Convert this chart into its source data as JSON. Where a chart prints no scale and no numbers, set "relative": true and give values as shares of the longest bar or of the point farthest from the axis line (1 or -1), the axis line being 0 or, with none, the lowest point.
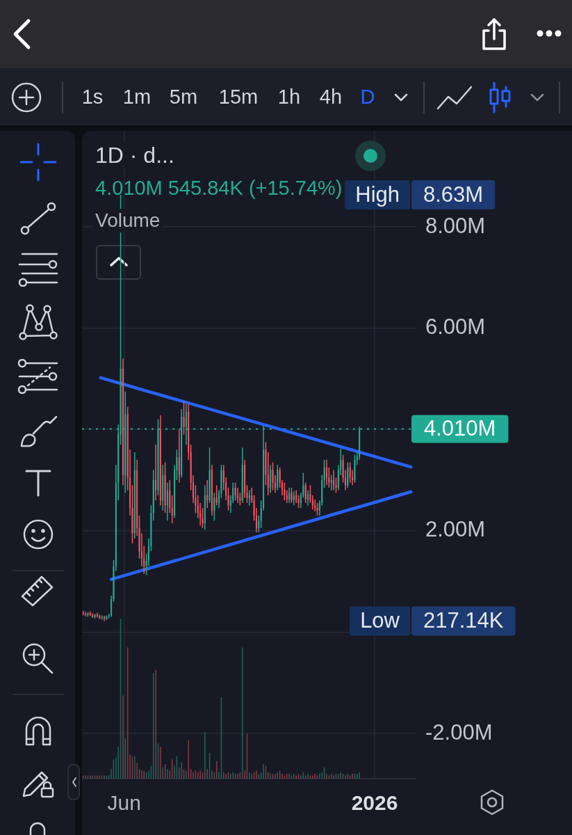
{
  "chart_data": [
    {
      "type": "candlestick",
      "title": "1D · d...",
      "x": [
        "2025-04-27",
        "2025-04-29",
        "2025-05-01",
        "2025-05-03",
        "2025-05-05",
        "2025-05-07",
        "2025-05-09",
        "2025-05-11",
        "2025-05-13",
        "2025-05-15",
        "2025-05-17",
        "2025-05-19",
        "2025-05-21",
        "2025-05-23",
        "2025-05-25",
        "2025-05-27",
        "2025-05-29",
        "2025-05-31",
        "2025-06-02",
        "2025-06-04",
        "2025-06-06",
        "2025-06-08",
        "2025-06-10",
        "2025-06-12",
        "2025-06-14",
        "2025-06-16",
        "2025-06-18",
        "2025-06-20",
        "2025-06-22",
        "2025-06-24",
        "2025-06-26",
        "2025-06-28",
        "2025-06-30",
        "2025-07-02",
        "2025-07-04",
        "2025-07-06",
        "2025-07-08",
        "2025-07-10",
        "2025-07-12",
        "2025-07-14",
        "2025-07-16",
        "2025-07-18",
        "2025-07-20",
        "2025-07-22",
        "2025-07-24",
        "2025-07-26",
        "2025-07-28",
        "2025-07-30",
        "2025-08-01",
        "2025-08-03",
        "2025-08-05",
        "2025-08-07",
        "2025-08-09",
        "2025-08-11",
        "2025-08-13",
        "2025-08-15",
        "2025-08-17",
        "2025-08-19",
        "2025-08-21",
        "2025-08-23",
        "2025-08-25",
        "2025-08-27",
        "2025-08-29",
        "2025-08-31",
        "2025-09-02",
        "2025-09-04",
        "2025-09-06",
        "2025-09-08",
        "2025-09-10",
        "2025-09-12",
        "2025-09-14",
        "2025-09-16",
        "2025-09-18",
        "2025-09-20",
        "2025-09-22",
        "2025-09-24",
        "2025-09-26",
        "2025-09-28",
        "2025-09-30",
        "2025-10-02",
        "2025-10-04",
        "2025-10-06",
        "2025-10-08",
        "2025-10-10",
        "2025-10-12",
        "2025-10-14",
        "2025-10-16",
        "2025-10-18",
        "2025-10-20",
        "2025-10-22",
        "2025-10-24",
        "2025-10-26",
        "2025-10-28",
        "2025-10-30",
        "2025-11-01",
        "2025-11-03",
        "2025-11-05",
        "2025-11-07",
        "2025-11-09",
        "2025-11-11",
        "2025-11-13",
        "2025-11-15",
        "2025-11-17",
        "2025-11-19",
        "2025-11-21",
        "2025-11-23",
        "2025-11-25",
        "2025-11-27",
        "2025-11-29",
        "2025-12-01",
        "2025-12-03",
        "2025-12-05",
        "2025-12-07",
        "2025-12-09",
        "2025-12-11",
        "2025-12-13",
        "2025-12-15",
        "2025-12-17",
        "2025-12-19"
      ],
      "ohlc": [
        [
          380000,
          420000,
          330000,
          360000
        ],
        [
          360000,
          400000,
          310000,
          340000
        ],
        [
          340000,
          390000,
          300000,
          370000
        ],
        [
          370000,
          410000,
          320000,
          330000
        ],
        [
          330000,
          370000,
          280000,
          300000
        ],
        [
          300000,
          360000,
          270000,
          340000
        ],
        [
          340000,
          380000,
          290000,
          310000
        ],
        [
          310000,
          350000,
          260000,
          280000
        ],
        [
          280000,
          330000,
          240000,
          300000
        ],
        [
          300000,
          320000,
          217140,
          260000
        ],
        [
          260000,
          330000,
          240000,
          310000
        ],
        [
          310000,
          360000,
          270000,
          330000
        ],
        [
          330000,
          720000,
          300000,
          650000
        ],
        [
          650000,
          1420000,
          600000,
          1300000
        ],
        [
          1300000,
          3300000,
          1200000,
          2950000
        ],
        [
          2950000,
          4100000,
          2600000,
          3900000
        ],
        [
          3900000,
          8630000,
          3700000,
          5200000
        ],
        [
          5200000,
          5400000,
          2900000,
          3100000
        ],
        [
          3100000,
          4750000,
          2750000,
          4300000
        ],
        [
          4300000,
          4450000,
          2800000,
          3050000
        ],
        [
          3050000,
          3600000,
          2300000,
          2450000
        ],
        [
          2450000,
          2900000,
          1750000,
          1950000
        ],
        [
          1950000,
          3550000,
          1850000,
          3200000
        ],
        [
          3200000,
          3400000,
          1900000,
          2050000
        ],
        [
          2050000,
          2300000,
          1450000,
          1600000
        ],
        [
          1600000,
          1950000,
          1300000,
          1450000
        ],
        [
          1450000,
          1700000,
          1150000,
          1300000
        ],
        [
          1300000,
          1550000,
          1130000,
          1400000
        ],
        [
          1400000,
          1850000,
          1300000,
          1700000
        ],
        [
          1700000,
          2500000,
          1600000,
          2350000
        ],
        [
          2350000,
          3200000,
          2200000,
          3000000
        ],
        [
          3000000,
          3700000,
          2600000,
          2800000
        ],
        [
          2800000,
          4200000,
          2700000,
          4000000
        ],
        [
          4000000,
          4280000,
          2500000,
          2600000
        ],
        [
          2600000,
          3300000,
          2400000,
          3100000
        ],
        [
          3100000,
          3350000,
          2350000,
          2500000
        ],
        [
          2500000,
          2950000,
          2200000,
          2800000
        ],
        [
          2800000,
          3000000,
          2350000,
          2450000
        ],
        [
          2450000,
          2700000,
          2150000,
          2300000
        ],
        [
          2300000,
          3300000,
          2250000,
          3200000
        ],
        [
          3200000,
          3600000,
          3000000,
          3450000
        ],
        [
          3450000,
          4000000,
          2950000,
          3100000
        ],
        [
          3100000,
          4400000,
          3050000,
          4250000
        ],
        [
          4250000,
          4550000,
          3900000,
          4050000
        ],
        [
          4050000,
          4500000,
          3700000,
          4350000
        ],
        [
          4350000,
          4500000,
          3400000,
          3550000
        ],
        [
          3550000,
          3700000,
          2800000,
          2950000
        ],
        [
          2950000,
          3100000,
          2550000,
          2650000
        ],
        [
          2650000,
          2900000,
          2350000,
          2500000
        ],
        [
          2500000,
          2700000,
          2250000,
          2350000
        ],
        [
          2350000,
          2550000,
          2100000,
          2250000
        ],
        [
          2250000,
          2450000,
          2050000,
          2150000
        ],
        [
          2150000,
          2900000,
          2020000,
          2700000
        ],
        [
          2700000,
          3000000,
          2450000,
          2600000
        ],
        [
          2600000,
          3640000,
          2550000,
          3200000
        ],
        [
          3200000,
          3300000,
          2300000,
          2400000
        ],
        [
          2400000,
          2750000,
          2200000,
          2650000
        ],
        [
          2650000,
          2900000,
          2500000,
          2550000
        ],
        [
          2550000,
          2800000,
          2450000,
          2750000
        ],
        [
          2750000,
          3300000,
          2650000,
          3200000
        ],
        [
          3200000,
          3300000,
          2800000,
          2950000
        ],
        [
          2950000,
          3050000,
          2600000,
          2700000
        ],
        [
          2700000,
          2850000,
          2400000,
          2500000
        ],
        [
          2500000,
          2700000,
          2350000,
          2600000
        ],
        [
          2600000,
          2950000,
          2550000,
          2850000
        ],
        [
          2850000,
          2950000,
          2600000,
          2700000
        ],
        [
          2700000,
          2850000,
          2550000,
          2650000
        ],
        [
          2650000,
          2750000,
          2500000,
          2600000
        ],
        [
          2600000,
          3640000,
          2550000,
          3300000
        ],
        [
          3300000,
          3400000,
          2650000,
          2750000
        ],
        [
          2750000,
          2900000,
          2550000,
          2650000
        ],
        [
          2650000,
          2800000,
          2500000,
          2700000
        ],
        [
          2700000,
          2850000,
          2550000,
          2600000
        ],
        [
          2600000,
          2700000,
          2200000,
          2300000
        ],
        [
          2300000,
          2450000,
          1970000,
          2050000
        ],
        [
          2050000,
          2300000,
          1970000,
          2200000
        ],
        [
          2200000,
          2600000,
          2050000,
          2450000
        ],
        [
          2450000,
          4070000,
          2400000,
          3600000
        ],
        [
          3600000,
          3750000,
          2900000,
          3100000
        ],
        [
          3100000,
          3550000,
          2700000,
          2850000
        ],
        [
          2850000,
          3300000,
          2750000,
          3200000
        ],
        [
          3200000,
          3350000,
          2800000,
          2950000
        ],
        [
          2950000,
          3100000,
          2750000,
          2850000
        ],
        [
          2850000,
          3300000,
          2800000,
          3200000
        ],
        [
          3200000,
          3250000,
          2850000,
          2950000
        ],
        [
          2950000,
          3000000,
          2700000,
          2800000
        ],
        [
          2800000,
          2950000,
          2600000,
          2700000
        ],
        [
          2700000,
          2800000,
          2550000,
          2620000
        ],
        [
          2620000,
          2850000,
          2550000,
          2750000
        ],
        [
          2750000,
          2850000,
          2550000,
          2600000
        ],
        [
          2600000,
          2780000,
          2500000,
          2700000
        ],
        [
          2700000,
          2800000,
          2550000,
          2620000
        ],
        [
          2620000,
          2700000,
          2450000,
          2550000
        ],
        [
          2550000,
          2750000,
          2450000,
          2700000
        ],
        [
          2700000,
          3140000,
          2650000,
          2900000
        ],
        [
          2900000,
          2950000,
          2550000,
          2620000
        ],
        [
          2620000,
          2800000,
          2500000,
          2720000
        ],
        [
          2720000,
          2900000,
          2550000,
          2600000
        ],
        [
          2600000,
          2700000,
          2420000,
          2500000
        ],
        [
          2500000,
          2620000,
          2380000,
          2450000
        ],
        [
          2450000,
          2550000,
          2300000,
          2400000
        ],
        [
          2400000,
          2600000,
          2300000,
          2550000
        ],
        [
          2550000,
          3100000,
          2500000,
          3000000
        ],
        [
          3000000,
          3400000,
          2850000,
          3250000
        ],
        [
          3250000,
          3400000,
          2900000,
          3050000
        ],
        [
          3050000,
          3250000,
          2850000,
          2950000
        ],
        [
          2950000,
          3100000,
          2800000,
          3000000
        ],
        [
          3000000,
          3200000,
          2800000,
          2900000
        ],
        [
          2900000,
          3050000,
          2750000,
          2850000
        ],
        [
          2850000,
          3300000,
          2800000,
          3200000
        ],
        [
          3200000,
          3620000,
          3100000,
          3400000
        ],
        [
          3400000,
          3500000,
          2950000,
          3050000
        ],
        [
          3050000,
          3200000,
          2800000,
          2900000
        ],
        [
          2900000,
          3350000,
          2850000,
          3250000
        ],
        [
          3250000,
          3350000,
          2950000,
          3050000
        ],
        [
          3050000,
          3200000,
          2900000,
          3000000
        ],
        [
          3000000,
          3500000,
          2950000,
          3400000
        ],
        [
          3400000,
          3550000,
          3300000,
          3464160
        ],
        [
          3464160,
          4050000,
          3400000,
          4010000
        ]
      ],
      "colors": [
        "#f7525f",
        "#f7525f",
        "#22ab94",
        "#f7525f",
        "#f7525f",
        "#22ab94",
        "#f7525f",
        "#f7525f",
        "#22ab94",
        "#f7525f",
        "#22ab94",
        "#22ab94",
        "#22ab94",
        "#22ab94",
        "#22ab94",
        "#22ab94",
        "#22ab94",
        "#f7525f",
        "#22ab94",
        "#f7525f",
        "#f7525f",
        "#f7525f",
        "#22ab94",
        "#f7525f",
        "#f7525f",
        "#f7525f",
        "#f7525f",
        "#22ab94",
        "#22ab94",
        "#22ab94",
        "#22ab94",
        "#f7525f",
        "#22ab94",
        "#f7525f",
        "#22ab94",
        "#f7525f",
        "#22ab94",
        "#f7525f",
        "#f7525f",
        "#22ab94",
        "#22ab94",
        "#f7525f",
        "#22ab94",
        "#f7525f",
        "#22ab94",
        "#f7525f",
        "#f7525f",
        "#f7525f",
        "#f7525f",
        "#f7525f",
        "#f7525f",
        "#f7525f",
        "#22ab94",
        "#f7525f",
        "#22ab94",
        "#f7525f",
        "#22ab94",
        "#f7525f",
        "#22ab94",
        "#22ab94",
        "#f7525f",
        "#f7525f",
        "#f7525f",
        "#22ab94",
        "#22ab94",
        "#f7525f",
        "#f7525f",
        "#f7525f",
        "#22ab94",
        "#f7525f",
        "#f7525f",
        "#22ab94",
        "#f7525f",
        "#f7525f",
        "#f7525f",
        "#22ab94",
        "#22ab94",
        "#22ab94",
        "#f7525f",
        "#f7525f",
        "#22ab94",
        "#f7525f",
        "#f7525f",
        "#22ab94",
        "#f7525f",
        "#f7525f",
        "#f7525f",
        "#f7525f",
        "#22ab94",
        "#f7525f",
        "#22ab94",
        "#f7525f",
        "#f7525f",
        "#22ab94",
        "#22ab94",
        "#f7525f",
        "#22ab94",
        "#f7525f",
        "#f7525f",
        "#f7525f",
        "#f7525f",
        "#22ab94",
        "#22ab94",
        "#22ab94",
        "#f7525f",
        "#f7525f",
        "#22ab94",
        "#f7525f",
        "#f7525f",
        "#22ab94",
        "#22ab94",
        "#f7525f",
        "#f7525f",
        "#22ab94",
        "#f7525f",
        "#f7525f",
        "#22ab94",
        "#22ab94",
        "#22ab94"
      ],
      "series": [
        {
          "type": "line",
          "x": [
            "2025-05-12",
            "2026-02-01"
          ],
          "values": [
            5020000,
            3260000
          ],
          "color": "#2962ff"
        },
        {
          "type": "line",
          "x": [
            "2025-05-21",
            "2026-02-01"
          ],
          "values": [
            1040000,
            2770000
          ],
          "color": "#2962ff"
        }
      ],
      "xlim": [
        "2025-04-26",
        "2026-02-05"
      ],
      "xticks": [
        {
          "value": "2025-06-01",
          "label": "Jun"
        },
        {
          "value": "2026-01-01",
          "label": "2026"
        }
      ],
      "ylim": [
        -2893000,
        9895000
      ],
      "yticks": [
        {
          "value": -2000000,
          "label": "-2.00M"
        },
        {
          "value": 0,
          "label": null
        },
        {
          "value": 2000000,
          "label": "2.00M"
        },
        {
          "value": 4000000,
          "label": null
        },
        {
          "value": 6000000,
          "label": "6.00M"
        },
        {
          "value": 8000000,
          "label": "8.00M"
        }
      ],
      "ref_lines": [
        {
          "axis": "y",
          "value": 4010000,
          "label": "4.010M",
          "color": "#22ab94",
          "line_style": "dotted"
        }
      ],
      "annotations": [
        "1s",
        "1m",
        "5m",
        "15m",
        "1h",
        "4h",
        "D",
        "4.010M 545.84K (+15.74%)",
        "High",
        "8.63M",
        "Low",
        "217.14K"
      ],
      "grid": true
    },
    {
      "type": "bar",
      "title": "Volume",
      "relative": true,
      "x": [
        "2025-04-27",
        "2025-04-29",
        "2025-05-01",
        "2025-05-03",
        "2025-05-05",
        "2025-05-07",
        "2025-05-09",
        "2025-05-11",
        "2025-05-13",
        "2025-05-15",
        "2025-05-17",
        "2025-05-19",
        "2025-05-21",
        "2025-05-23",
        "2025-05-25",
        "2025-05-27",
        "2025-05-29",
        "2025-05-31",
        "2025-06-02",
        "2025-06-04",
        "2025-06-06",
        "2025-06-08",
        "2025-06-10",
        "2025-06-12",
        "2025-06-14",
        "2025-06-16",
        "2025-06-18",
        "2025-06-20",
        "2025-06-22",
        "2025-06-24",
        "2025-06-26",
        "2025-06-28",
        "2025-06-30",
        "2025-07-02",
        "2025-07-04",
        "2025-07-06",
        "2025-07-08",
        "2025-07-10",
        "2025-07-12",
        "2025-07-14",
        "2025-07-16",
        "2025-07-18",
        "2025-07-20",
        "2025-07-22",
        "2025-07-24",
        "2025-07-26",
        "2025-07-28",
        "2025-07-30",
        "2025-08-01",
        "2025-08-03",
        "2025-08-05",
        "2025-08-07",
        "2025-08-09",
        "2025-08-11",
        "2025-08-13",
        "2025-08-15",
        "2025-08-17",
        "2025-08-19",
        "2025-08-21",
        "2025-08-23",
        "2025-08-25",
        "2025-08-27",
        "2025-08-29",
        "2025-08-31",
        "2025-09-02",
        "2025-09-04",
        "2025-09-06",
        "2025-09-08",
        "2025-09-10",
        "2025-09-12",
        "2025-09-14",
        "2025-09-16",
        "2025-09-18",
        "2025-09-20",
        "2025-09-22",
        "2025-09-24",
        "2025-09-26",
        "2025-09-28",
        "2025-09-30",
        "2025-10-02",
        "2025-10-04",
        "2025-10-06",
        "2025-10-08",
        "2025-10-10",
        "2025-10-12",
        "2025-10-14",
        "2025-10-16",
        "2025-10-18",
        "2025-10-20",
        "2025-10-22",
        "2025-10-24",
        "2025-10-26",
        "2025-10-28",
        "2025-10-30",
        "2025-11-01",
        "2025-11-03",
        "2025-11-05",
        "2025-11-07",
        "2025-11-09",
        "2025-11-11",
        "2025-11-13",
        "2025-11-15",
        "2025-11-17",
        "2025-11-19",
        "2025-11-21",
        "2025-11-23",
        "2025-11-25",
        "2025-11-27",
        "2025-11-29",
        "2025-12-01",
        "2025-12-03",
        "2025-12-05",
        "2025-12-07",
        "2025-12-09",
        "2025-12-11",
        "2025-12-13",
        "2025-12-15",
        "2025-12-17",
        "2025-12-19"
      ],
      "values": [
        0.02,
        0.02,
        0.02,
        0.02,
        0.02,
        0.02,
        0.02,
        0.02,
        0.02,
        0.02,
        0.02,
        0.02,
        0.06,
        0.12,
        0.13,
        0.2,
        1,
        0.52,
        0.25,
        0.82,
        0.15,
        0.14,
        0.14,
        0.1,
        0.06,
        0.05,
        0.05,
        0.04,
        0.05,
        0.08,
        0.66,
        0.68,
        0.22,
        0.2,
        0.07,
        0.09,
        0.06,
        0.05,
        0.12,
        0.08,
        0.14,
        0.07,
        0.1,
        0.06,
        0.05,
        0.24,
        0.06,
        0.04,
        0.05,
        0.04,
        0.05,
        0.04,
        0.29,
        0.06,
        0.16,
        0.05,
        0.04,
        0.11,
        0.04,
        0.51,
        0.04,
        0.03,
        0.04,
        0.03,
        0.04,
        0.03,
        0.03,
        0.04,
        0.82,
        0.05,
        0.28,
        0.04,
        0.03,
        0.04,
        0.05,
        0.03,
        0.04,
        0.09,
        0.08,
        0.04,
        0.03,
        0.03,
        0.03,
        0.04,
        0.05,
        0.03,
        0.02,
        0.03,
        0.03,
        0.02,
        0.03,
        0.02,
        0.03,
        0.02,
        0.04,
        0.02,
        0.03,
        0.02,
        0.02,
        0.03,
        0.02,
        0.03,
        0.04,
        0.07,
        0.03,
        0.02,
        0.03,
        0.02,
        0.03,
        0.03,
        0.04,
        0.03,
        0.02,
        0.03,
        0.02,
        0.03,
        0.03,
        0.03,
        0.04
      ],
      "colors": [
        "#873641",
        "#873641",
        "#1c625c",
        "#873641",
        "#873641",
        "#1c625c",
        "#873641",
        "#873641",
        "#1c625c",
        "#873641",
        "#1c625c",
        "#1c625c",
        "#1c625c",
        "#1c625c",
        "#1c625c",
        "#1c625c",
        "#1c625c",
        "#873641",
        "#1c625c",
        "#873641",
        "#873641",
        "#873641",
        "#1c625c",
        "#873641",
        "#873641",
        "#873641",
        "#873641",
        "#1c625c",
        "#1c625c",
        "#1c625c",
        "#1c625c",
        "#873641",
        "#1c625c",
        "#873641",
        "#1c625c",
        "#873641",
        "#1c625c",
        "#873641",
        "#873641",
        "#1c625c",
        "#1c625c",
        "#873641",
        "#1c625c",
        "#873641",
        "#1c625c",
        "#873641",
        "#873641",
        "#873641",
        "#873641",
        "#873641",
        "#873641",
        "#873641",
        "#1c625c",
        "#873641",
        "#1c625c",
        "#873641",
        "#1c625c",
        "#873641",
        "#1c625c",
        "#1c625c",
        "#873641",
        "#873641",
        "#873641",
        "#1c625c",
        "#1c625c",
        "#873641",
        "#873641",
        "#873641",
        "#1c625c",
        "#873641",
        "#873641",
        "#1c625c",
        "#873641",
        "#873641",
        "#873641",
        "#1c625c",
        "#1c625c",
        "#1c625c",
        "#873641",
        "#873641",
        "#1c625c",
        "#873641",
        "#873641",
        "#1c625c",
        "#873641",
        "#873641",
        "#873641",
        "#873641",
        "#1c625c",
        "#873641",
        "#1c625c",
        "#873641",
        "#873641",
        "#1c625c",
        "#1c625c",
        "#873641",
        "#1c625c",
        "#873641",
        "#873641",
        "#873641",
        "#873641",
        "#1c625c",
        "#1c625c",
        "#1c625c",
        "#873641",
        "#873641",
        "#1c625c",
        "#873641",
        "#873641",
        "#1c625c",
        "#1c625c",
        "#873641",
        "#873641",
        "#1c625c",
        "#873641",
        "#873641",
        "#1c625c",
        "#1c625c",
        "#1c625c"
      ],
      "xlim": [
        "2025-04-26",
        "2026-02-05"
      ],
      "tick_labels": false
    }
  ]
}
